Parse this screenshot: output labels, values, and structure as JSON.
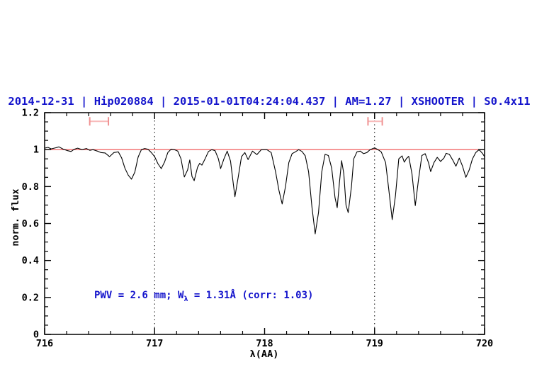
{
  "title": {
    "text": "2014-12-31 | Hip020884 | 2015-01-01T04:24:04.437 | AM=1.27 | XSHOOTER | S0.4x11"
  },
  "annotation": {
    "prefix": "PWV = 2.6 mm; W",
    "sub": "λ",
    "suffix": " = 1.31Å (corr: 1.03)"
  },
  "colors": {
    "accent_blue": "#1414cc",
    "continuum_red": "#f26a6a",
    "marker_cap_red": "#f09292",
    "marker_bar_red": "#f8bcbc",
    "spectrum_black": "#000000"
  },
  "chart_data": {
    "type": "line",
    "title": "2014-12-31 | Hip020884 | 2015-01-01T04:24:04.437 | AM=1.27 | XSHOOTER | S0.4x11",
    "xlabel": "λ(AA)",
    "ylabel": "norm. flux",
    "xlim": [
      716,
      720
    ],
    "ylim": [
      0,
      1.2
    ],
    "grid": false,
    "legend": "none",
    "x_ticks": [
      {
        "value": 716,
        "label": "716"
      },
      {
        "value": 717,
        "label": "717"
      },
      {
        "value": 718,
        "label": "718"
      },
      {
        "value": 719,
        "label": "719"
      },
      {
        "value": 720,
        "label": "720"
      }
    ],
    "y_ticks": [
      {
        "value": 0,
        "label": "0"
      },
      {
        "value": 0.2,
        "label": "0.2"
      },
      {
        "value": 0.4,
        "label": "0.4"
      },
      {
        "value": 0.6,
        "label": "0.6"
      },
      {
        "value": 0.8,
        "label": "0.8"
      },
      {
        "value": 1,
        "label": "1"
      },
      {
        "value": 1.2,
        "label": "1.2"
      }
    ],
    "x_minor_step": 0.2,
    "y_minor_step": 0.05,
    "guide_lines_x": [
      717,
      719
    ],
    "continuum": {
      "name": "continuum level",
      "y": 1.0
    },
    "range_markers": [
      {
        "x_min": 716.41,
        "x_max": 716.58,
        "y": 1.153
      },
      {
        "x_min": 718.94,
        "x_max": 719.07,
        "y": 1.153
      }
    ],
    "annotation_text": "PWV = 2.6 mm; Wλ = 1.31Å (corr: 1.03)",
    "series": [
      {
        "name": "observed telluric spectrum",
        "points": [
          [
            716.0,
            1.008
          ],
          [
            716.03,
            1.012
          ],
          [
            716.06,
            1.004
          ],
          [
            716.1,
            1.01
          ],
          [
            716.13,
            1.015
          ],
          [
            716.17,
            1.002
          ],
          [
            716.21,
            0.994
          ],
          [
            716.24,
            0.99
          ],
          [
            716.27,
            1.002
          ],
          [
            716.3,
            1.008
          ],
          [
            716.34,
            1.0
          ],
          [
            716.38,
            1.006
          ],
          [
            716.41,
            0.996
          ],
          [
            716.44,
            1.0
          ],
          [
            716.48,
            0.992
          ],
          [
            716.51,
            0.984
          ],
          [
            716.55,
            0.982
          ],
          [
            716.59,
            0.962
          ],
          [
            716.63,
            0.984
          ],
          [
            716.67,
            0.988
          ],
          [
            716.7,
            0.955
          ],
          [
            716.73,
            0.9
          ],
          [
            716.76,
            0.862
          ],
          [
            716.79,
            0.84
          ],
          [
            716.82,
            0.878
          ],
          [
            716.85,
            0.96
          ],
          [
            716.88,
            1.0
          ],
          [
            716.91,
            1.006
          ],
          [
            716.94,
            1.002
          ],
          [
            716.97,
            0.984
          ],
          [
            717.0,
            0.962
          ],
          [
            717.03,
            0.924
          ],
          [
            717.06,
            0.897
          ],
          [
            717.09,
            0.932
          ],
          [
            717.12,
            0.984
          ],
          [
            717.15,
            1.002
          ],
          [
            717.18,
            1.0
          ],
          [
            717.21,
            0.992
          ],
          [
            717.24,
            0.95
          ],
          [
            717.27,
            0.852
          ],
          [
            717.3,
            0.89
          ],
          [
            717.32,
            0.944
          ],
          [
            717.34,
            0.855
          ],
          [
            717.36,
            0.832
          ],
          [
            717.39,
            0.904
          ],
          [
            717.41,
            0.926
          ],
          [
            717.43,
            0.916
          ],
          [
            717.46,
            0.952
          ],
          [
            717.49,
            0.99
          ],
          [
            717.52,
            1.0
          ],
          [
            717.55,
            0.994
          ],
          [
            717.58,
            0.95
          ],
          [
            717.6,
            0.897
          ],
          [
            717.63,
            0.95
          ],
          [
            717.66,
            0.992
          ],
          [
            717.69,
            0.938
          ],
          [
            717.71,
            0.84
          ],
          [
            717.73,
            0.745
          ],
          [
            717.76,
            0.85
          ],
          [
            717.79,
            0.962
          ],
          [
            717.82,
            0.984
          ],
          [
            717.85,
            0.946
          ],
          [
            717.89,
            0.992
          ],
          [
            717.93,
            0.973
          ],
          [
            717.97,
            1.0
          ],
          [
            718.02,
            1.0
          ],
          [
            718.06,
            0.984
          ],
          [
            718.1,
            0.88
          ],
          [
            718.13,
            0.78
          ],
          [
            718.16,
            0.706
          ],
          [
            718.19,
            0.8
          ],
          [
            718.22,
            0.93
          ],
          [
            718.25,
            0.978
          ],
          [
            718.28,
            0.988
          ],
          [
            718.31,
            1.0
          ],
          [
            718.34,
            0.99
          ],
          [
            718.37,
            0.966
          ],
          [
            718.4,
            0.88
          ],
          [
            718.43,
            0.69
          ],
          [
            718.46,
            0.544
          ],
          [
            718.49,
            0.66
          ],
          [
            718.52,
            0.88
          ],
          [
            718.55,
            0.975
          ],
          [
            718.58,
            0.968
          ],
          [
            718.61,
            0.9
          ],
          [
            718.64,
            0.74
          ],
          [
            718.66,
            0.686
          ],
          [
            718.68,
            0.82
          ],
          [
            718.7,
            0.94
          ],
          [
            718.72,
            0.87
          ],
          [
            718.74,
            0.7
          ],
          [
            718.76,
            0.659
          ],
          [
            718.79,
            0.8
          ],
          [
            718.81,
            0.95
          ],
          [
            718.84,
            0.988
          ],
          [
            718.87,
            0.992
          ],
          [
            718.9,
            0.978
          ],
          [
            718.93,
            0.984
          ],
          [
            718.96,
            1.0
          ],
          [
            719.0,
            1.01
          ],
          [
            719.03,
            1.0
          ],
          [
            719.06,
            0.988
          ],
          [
            719.1,
            0.93
          ],
          [
            719.13,
            0.78
          ],
          [
            719.16,
            0.621
          ],
          [
            719.19,
            0.75
          ],
          [
            719.22,
            0.95
          ],
          [
            719.25,
            0.966
          ],
          [
            719.27,
            0.932
          ],
          [
            719.29,
            0.952
          ],
          [
            719.31,
            0.964
          ],
          [
            719.34,
            0.87
          ],
          [
            719.37,
            0.697
          ],
          [
            719.4,
            0.84
          ],
          [
            719.43,
            0.968
          ],
          [
            719.46,
            0.978
          ],
          [
            719.49,
            0.93
          ],
          [
            719.51,
            0.881
          ],
          [
            719.54,
            0.93
          ],
          [
            719.57,
            0.958
          ],
          [
            719.6,
            0.936
          ],
          [
            719.63,
            0.954
          ],
          [
            719.65,
            0.98
          ],
          [
            719.68,
            0.974
          ],
          [
            719.71,
            0.944
          ],
          [
            719.74,
            0.91
          ],
          [
            719.77,
            0.954
          ],
          [
            719.8,
            0.91
          ],
          [
            719.83,
            0.85
          ],
          [
            719.86,
            0.89
          ],
          [
            719.89,
            0.95
          ],
          [
            719.92,
            0.984
          ],
          [
            719.95,
            1.0
          ],
          [
            719.98,
            0.98
          ],
          [
            720.0,
            0.962
          ]
        ]
      }
    ]
  }
}
